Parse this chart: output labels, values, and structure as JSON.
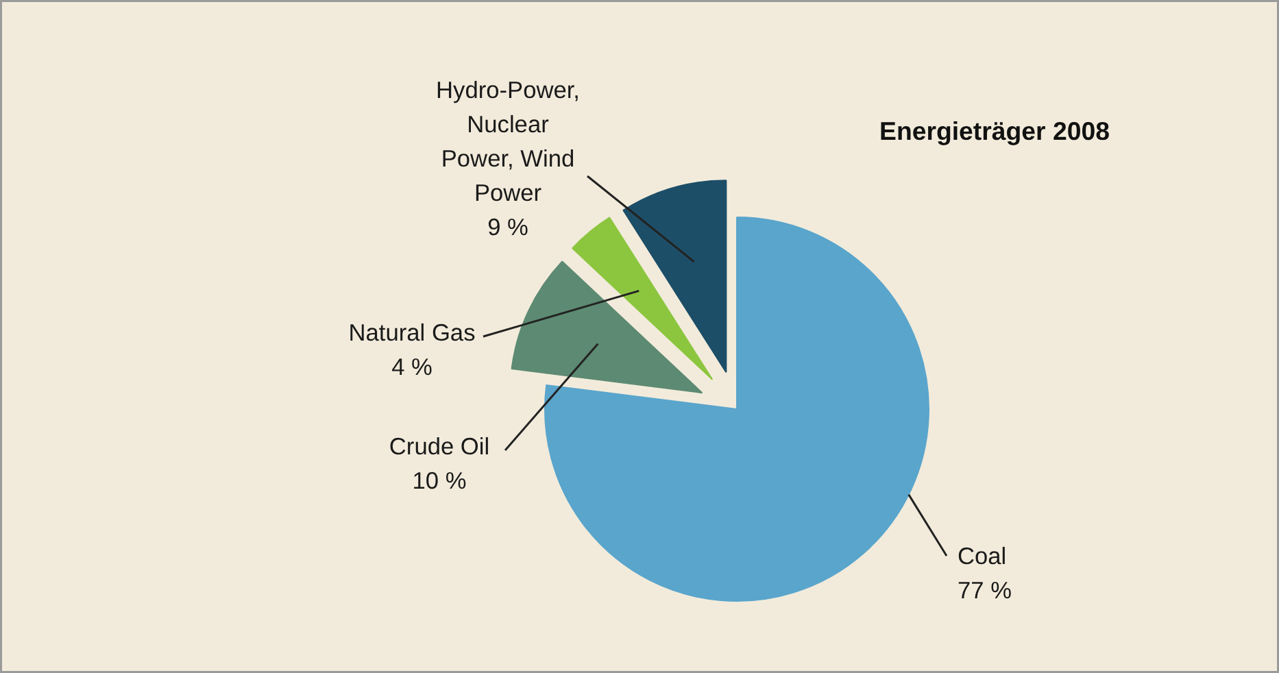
{
  "chart_data": {
    "type": "pie",
    "title": "Energieträger 2008",
    "categories": [
      "Coal",
      "Crude Oil",
      "Natural Gas",
      "Hydro-Power, Nuclear Power, Wind Power"
    ],
    "values": [
      77,
      10,
      4,
      9
    ],
    "colors": [
      "#5aa5cc",
      "#5d8a72",
      "#8cc63f",
      "#1d4e68"
    ],
    "value_labels": [
      "77 %",
      "10 %",
      "4 %",
      "9 %"
    ]
  }
}
